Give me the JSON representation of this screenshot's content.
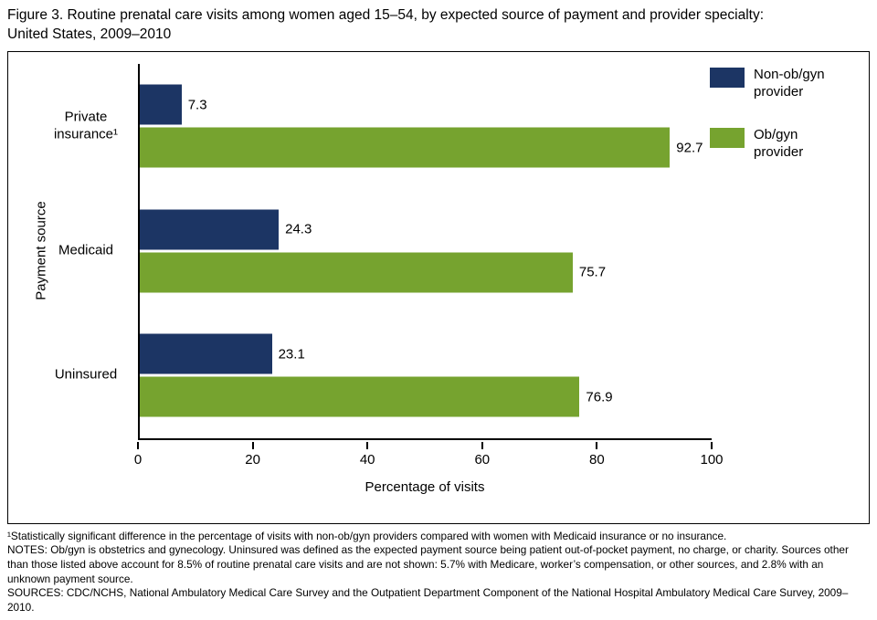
{
  "title": {
    "line1": "Figure 3. Routine prenatal care visits among women aged 15–54, by expected source of payment and provider specialty:",
    "line2": "United States, 2009–2010"
  },
  "chart_data": {
    "type": "bar",
    "orientation": "horizontal",
    "categories": [
      "Private insurance¹",
      "Medicaid",
      "Uninsured"
    ],
    "series": [
      {
        "name": "Non-ob/gyn provider",
        "color": "#1c3564",
        "values": [
          7.3,
          24.3,
          23.1
        ]
      },
      {
        "name": "Ob/gyn provider",
        "color": "#76a32f",
        "values": [
          92.7,
          75.7,
          76.9
        ]
      }
    ],
    "xlabel": "Percentage of visits",
    "ylabel": "Payment source",
    "xlim": [
      0,
      100
    ],
    "xticks": [
      0,
      20,
      40,
      60,
      80,
      100
    ],
    "legend_position": "top-right",
    "grid": false
  },
  "footnotes": {
    "note1": "¹Statistically significant difference in the percentage of visits with non-ob/gyn providers compared with women with Medicaid insurance or no insurance.",
    "notes": "NOTES: Ob/gyn is obstetrics and gynecology. Uninsured was defined as the expected payment source being patient out-of-pocket payment, no charge, or charity. Sources other than those listed above account for 8.5% of routine prenatal care visits and are not shown: 5.7% with Medicare, worker’s compensation, or other sources, and 2.8% with an unknown payment source.",
    "sources": "SOURCES: CDC/NCHS, National Ambulatory Medical Care Survey and the Outpatient Department Component of the National Hospital Ambulatory Medical Care Survey, 2009–2010."
  }
}
